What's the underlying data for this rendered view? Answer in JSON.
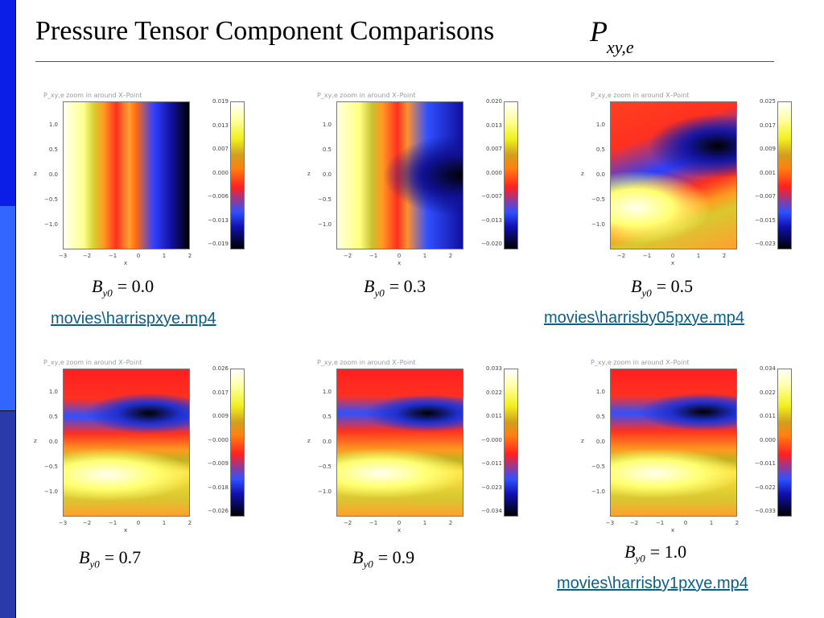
{
  "title": "Pressure Tensor Component Comparisons",
  "title_symbol": {
    "letter": "P",
    "subscript": "xy,e"
  },
  "plot_title": "P_xy,e zoom in around X–Point",
  "axis": {
    "x_label": "x",
    "y_label": "z",
    "y_ticks": [
      "1.0",
      "0.5",
      "0.0",
      "−0.5",
      "−1.0"
    ]
  },
  "panels": [
    {
      "label_var": "B",
      "label_sub": "y0",
      "label_val": "= 0.0",
      "x_ticks": [
        "−3",
        "−2",
        "−1",
        "0",
        "1",
        "2"
      ],
      "colorbar": [
        "0.019",
        "0.013",
        "0.007",
        "0.000",
        "−0.006",
        "−0.013",
        "−0.019"
      ],
      "link": "movies\\harrispxye.mp4"
    },
    {
      "label_var": "B",
      "label_sub": "y0",
      "label_val": "= 0.3",
      "x_ticks": [
        "−2",
        "−1",
        "0",
        "1",
        "2"
      ],
      "colorbar": [
        "0.020",
        "0.013",
        "0.007",
        "0.000",
        "−0.007",
        "−0.013",
        "−0.020"
      ]
    },
    {
      "label_var": "B",
      "label_sub": "y0",
      "label_val": "= 0.5",
      "x_ticks": [
        "−2",
        "−1",
        "0",
        "1",
        "2"
      ],
      "colorbar": [
        "0.025",
        "0.017",
        "0.009",
        "0.001",
        "−0.007",
        "−0.015",
        "−0.023"
      ],
      "link": "movies\\harrisby05pxye.mp4"
    },
    {
      "label_var": "B",
      "label_sub": "y0",
      "label_val": "= 0.7",
      "x_ticks": [
        "−3",
        "−2",
        "−1",
        "0",
        "1",
        "2"
      ],
      "colorbar": [
        "0.026",
        "0.017",
        "0.009",
        "−0.000",
        "−0.009",
        "−0.018",
        "−0.026"
      ]
    },
    {
      "label_var": "B",
      "label_sub": "y0",
      "label_val": "= 0.9",
      "x_ticks": [
        "−2",
        "−1",
        "0",
        "1",
        "2"
      ],
      "colorbar": [
        "0.033",
        "0.022",
        "0.011",
        "−0.000",
        "−0.011",
        "−0.023",
        "−0.034"
      ]
    },
    {
      "label_var": "B",
      "label_sub": "y0",
      "label_val": "= 1.0",
      "x_ticks": [
        "−3",
        "−2",
        "−1",
        "0",
        "1",
        "2"
      ],
      "colorbar": [
        "0.034",
        "0.022",
        "0.011",
        "0.000",
        "−0.011",
        "−0.022",
        "−0.033"
      ],
      "link": "movies\\harrisby1pxye.mp4"
    }
  ],
  "colors": {
    "sidebar_top": "#0a1ee6",
    "sidebar_mid": "#3366ff",
    "sidebar_bottom": "#2a3aa8",
    "link": "#0b5e86"
  }
}
